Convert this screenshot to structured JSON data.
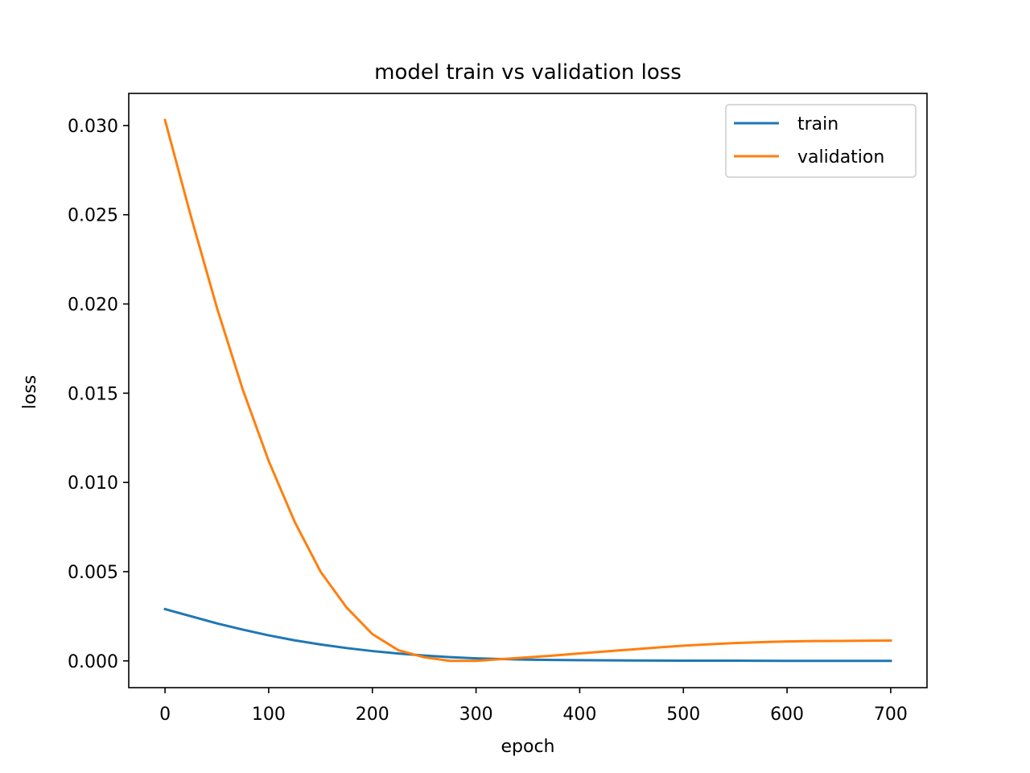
{
  "chart_data": {
    "type": "line",
    "title": "model train vs validation loss",
    "xlabel": "epoch",
    "ylabel": "loss",
    "xlim": [
      -35,
      735
    ],
    "ylim": [
      -0.0015,
      0.0318
    ],
    "xticks": [
      0,
      100,
      200,
      300,
      400,
      500,
      600,
      700
    ],
    "xtick_labels": [
      "0",
      "100",
      "200",
      "300",
      "400",
      "500",
      "600",
      "700"
    ],
    "yticks": [
      0.0,
      0.005,
      0.01,
      0.015,
      0.02,
      0.025,
      0.03
    ],
    "ytick_labels": [
      "0.000",
      "0.005",
      "0.010",
      "0.015",
      "0.020",
      "0.025",
      "0.030"
    ],
    "grid": false,
    "legend_position": "top-right",
    "series": [
      {
        "name": "train",
        "color": "#1f77b4",
        "x": [
          0,
          25,
          50,
          75,
          100,
          125,
          150,
          175,
          200,
          225,
          250,
          275,
          300,
          325,
          350,
          375,
          400,
          450,
          500,
          550,
          600,
          650,
          700
        ],
        "y": [
          0.0029,
          0.0025,
          0.0021,
          0.00175,
          0.00143,
          0.00115,
          0.00092,
          0.00072,
          0.00055,
          0.00041,
          0.0003,
          0.00021,
          0.00014,
          0.0001,
          7e-05,
          5e-05,
          4e-05,
          2e-05,
          1e-05,
          1e-05,
          0.0,
          0.0,
          0.0
        ]
      },
      {
        "name": "validation",
        "color": "#ff7f0e",
        "x": [
          0,
          25,
          50,
          75,
          100,
          125,
          150,
          175,
          200,
          225,
          250,
          275,
          300,
          325,
          350,
          375,
          400,
          425,
          450,
          475,
          500,
          525,
          550,
          575,
          600,
          625,
          650,
          675,
          700
        ],
        "y": [
          0.0303,
          0.0249,
          0.0198,
          0.0152,
          0.0112,
          0.0078,
          0.005,
          0.003,
          0.0015,
          0.0006,
          0.0002,
          0.0,
          0.0,
          0.0001,
          0.0002,
          0.0003,
          0.00042,
          0.00053,
          0.00064,
          0.00075,
          0.00085,
          0.00093,
          0.001,
          0.00105,
          0.00109,
          0.00111,
          0.00112,
          0.00113,
          0.00114
        ]
      }
    ]
  }
}
